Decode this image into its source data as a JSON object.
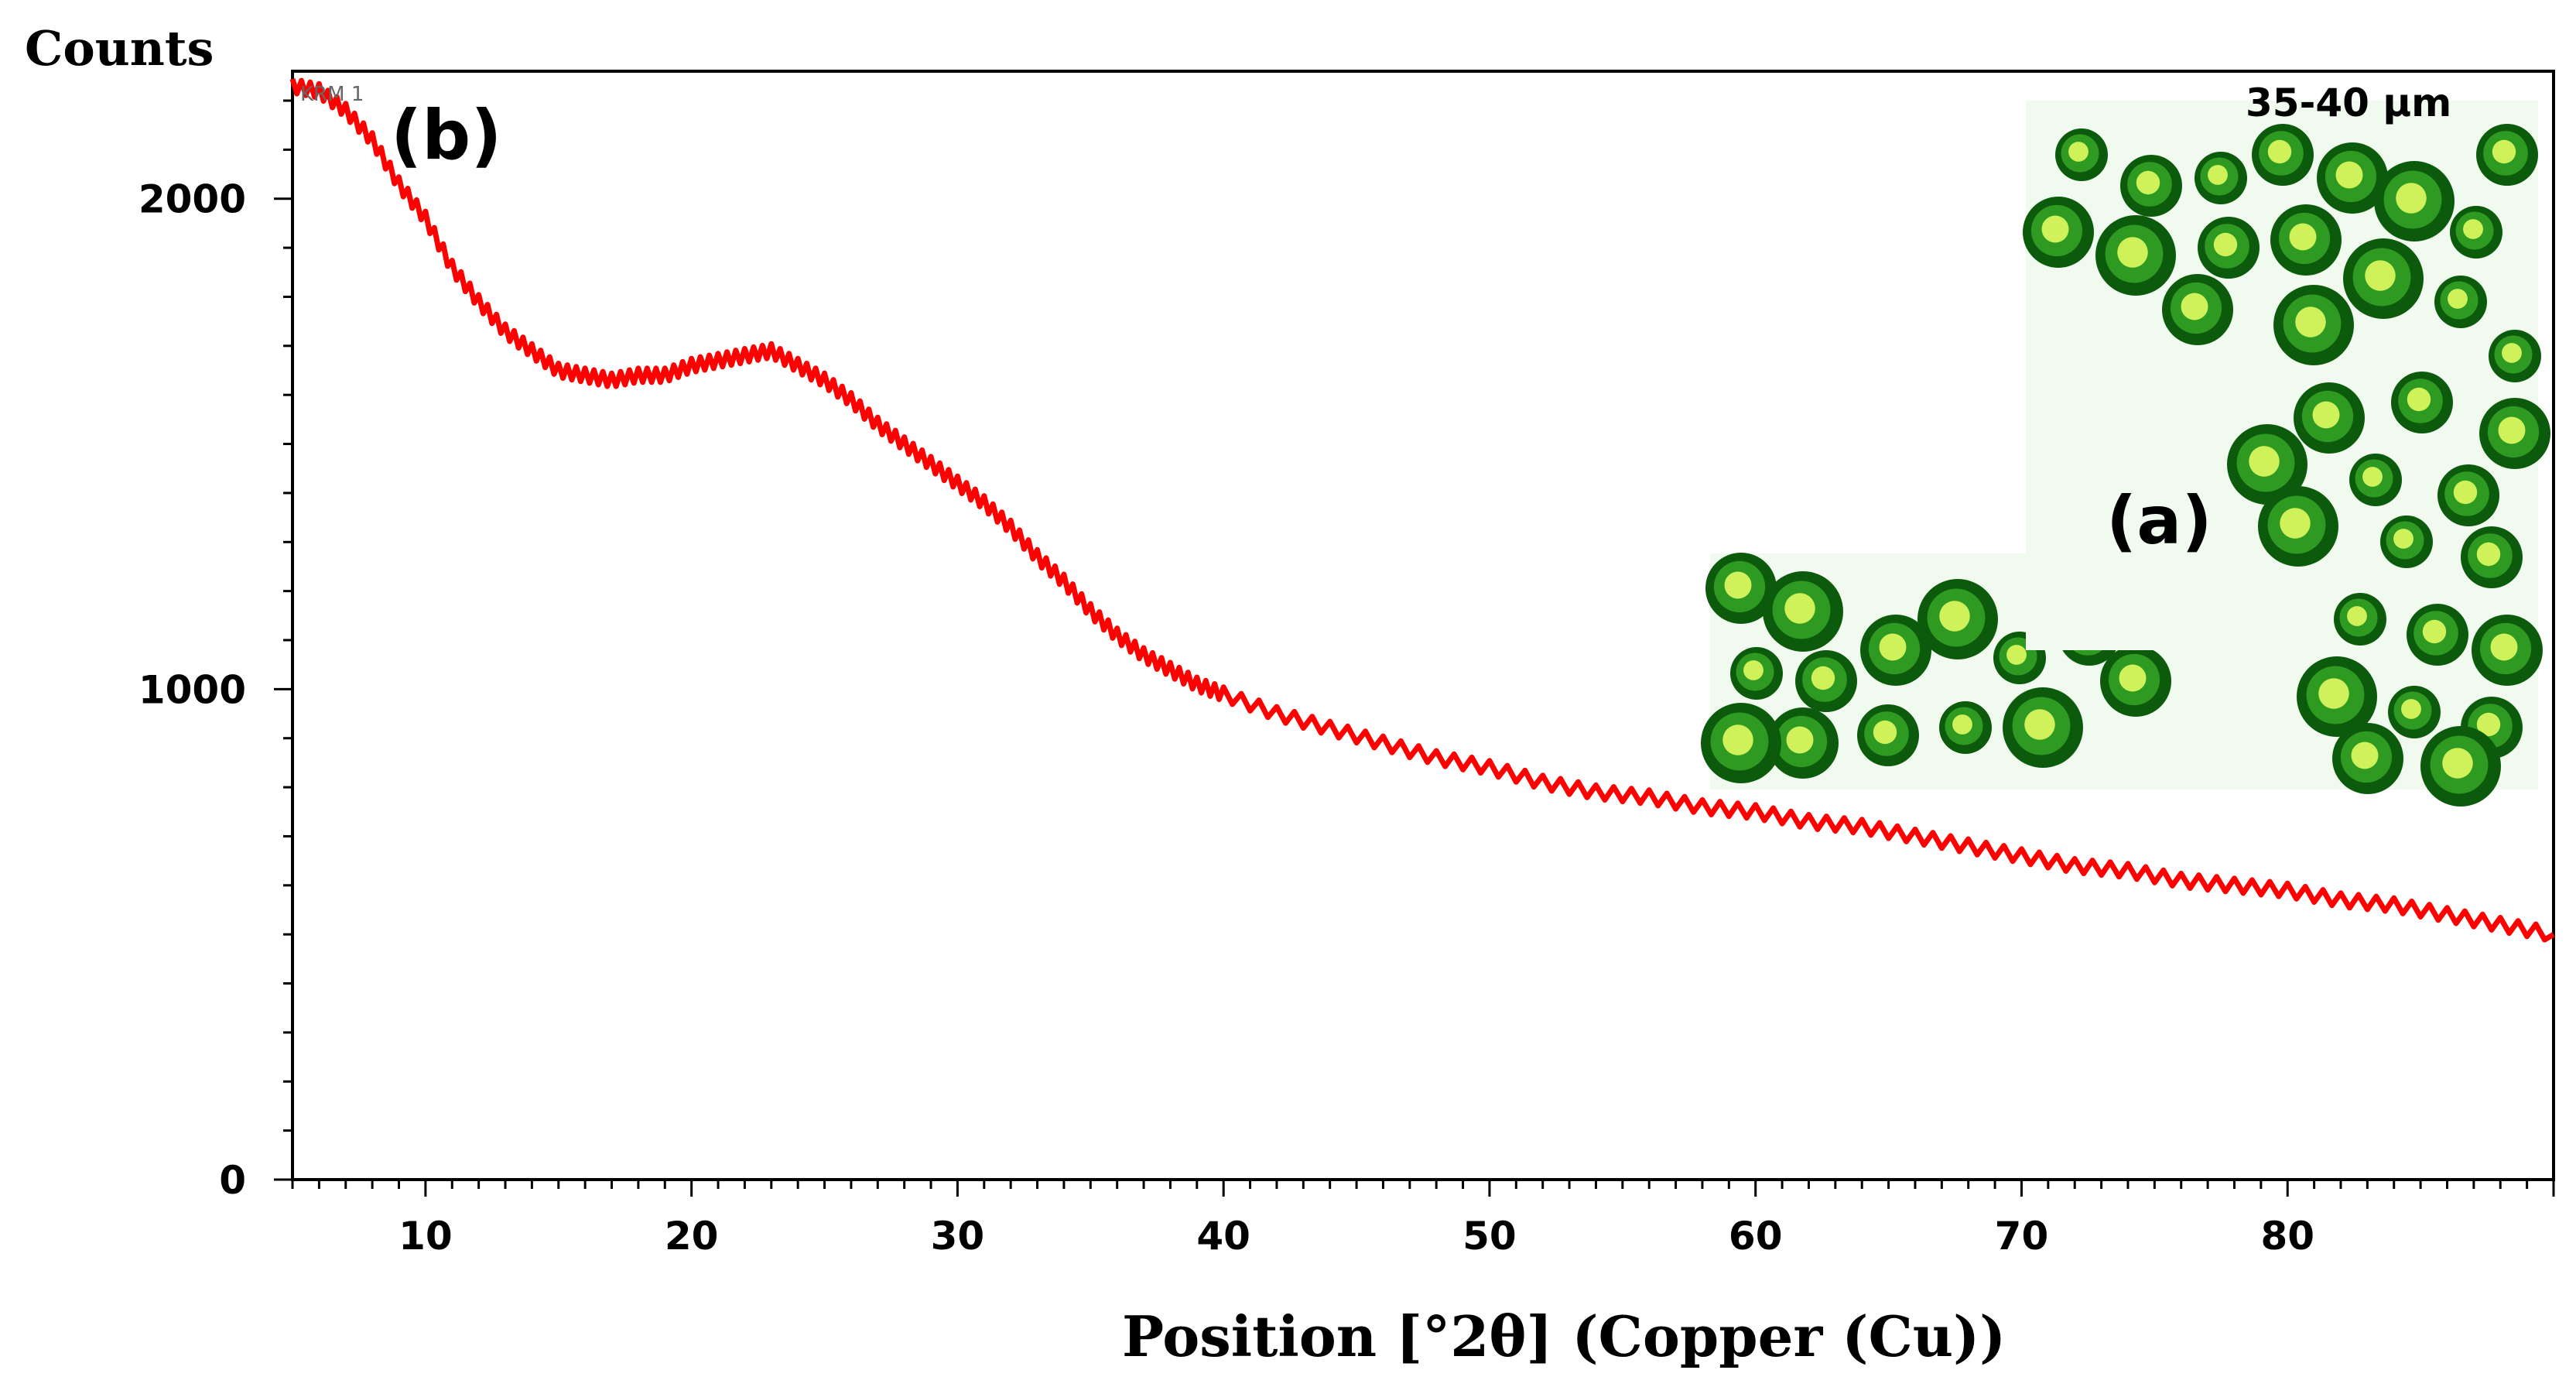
{
  "chart_data": {
    "type": "line",
    "title": "",
    "xlabel": "Position [°2θ] (Copper (Cu))",
    "ylabel": "Counts",
    "xlim": [
      5,
      90
    ],
    "ylim": [
      0,
      2260
    ],
    "x_ticks": [
      10,
      20,
      30,
      40,
      50,
      60,
      70,
      80
    ],
    "x_tick_labels": [
      "10",
      "20",
      "30",
      "40",
      "50",
      "60",
      "70",
      "80"
    ],
    "y_ticks": [
      0,
      1000,
      2000
    ],
    "y_tick_labels": [
      "0",
      "1000",
      "2000"
    ],
    "grid": false,
    "legend": "none",
    "series": [
      {
        "color": "#ff0000",
        "x": [
          5,
          6,
          7,
          8,
          9,
          10,
          11,
          12,
          13,
          14,
          15,
          16,
          17,
          18,
          19,
          20,
          21,
          22,
          23,
          24,
          25,
          26,
          27,
          28,
          29,
          30,
          31,
          32,
          33,
          34,
          35,
          36,
          37,
          38,
          39,
          40,
          42,
          44,
          46,
          48,
          50,
          52,
          54,
          56,
          58,
          60,
          62,
          64,
          66,
          68,
          70,
          72,
          74,
          76,
          78,
          80,
          82,
          84,
          86,
          88,
          90
        ],
        "y": [
          2230,
          2220,
          2180,
          2120,
          2030,
          1960,
          1860,
          1790,
          1730,
          1690,
          1650,
          1640,
          1630,
          1640,
          1640,
          1660,
          1670,
          1680,
          1690,
          1660,
          1630,
          1590,
          1540,
          1500,
          1460,
          1420,
          1380,
          1330,
          1270,
          1220,
          1160,
          1110,
          1070,
          1040,
          1010,
          990,
          950,
          920,
          890,
          860,
          840,
          810,
          790,
          780,
          760,
          750,
          730,
          720,
          700,
          680,
          660,
          640,
          630,
          610,
          600,
          590,
          570,
          560,
          540,
          520,
          500
        ]
      }
    ],
    "annotations": {
      "panel_b": "(b)",
      "panel_a": "(a)",
      "scale_label": "35-40 µm",
      "corner_label": "KRM 1"
    }
  },
  "colors": {
    "series_line": "#ff0000",
    "axis": "#000000",
    "inset_background": "#f1faee",
    "particle_dark": "#0c5a0c",
    "particle_mid": "#2f9a22",
    "particle_light": "#cff25a"
  }
}
